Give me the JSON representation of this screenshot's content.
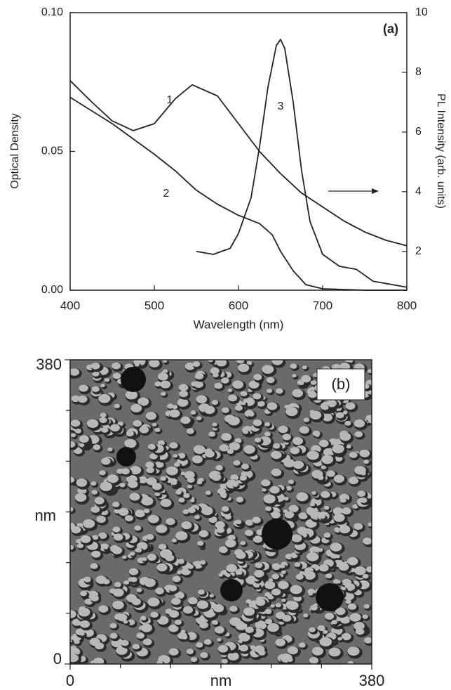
{
  "chart_data": [
    {
      "type": "line",
      "label": "(a)",
      "xlabel": "Wavelength (nm)",
      "ylabel": "Optical Density",
      "y2label": "PL Intensity (arb. units)",
      "xlim": [
        400,
        800
      ],
      "xticks": [
        400,
        500,
        600,
        700,
        800
      ],
      "ylim": [
        0,
        0.1
      ],
      "yticks": [
        {
          "value": 0,
          "label": "0.00"
        },
        {
          "value": 0.05,
          "label": "0.05"
        },
        {
          "value": 0.1,
          "label": "0.10"
        }
      ],
      "y2lim": [
        0.7,
        10
      ],
      "y2ticks": [
        2,
        4,
        6,
        8,
        10
      ],
      "series": [
        {
          "name": "1",
          "color": "#222222",
          "x": [
            400,
            425,
            450,
            475,
            500,
            525,
            545,
            575,
            600,
            625,
            650,
            675,
            700,
            725,
            750,
            775,
            800
          ],
          "values": [
            0.0755,
            0.068,
            0.061,
            0.0575,
            0.06,
            0.069,
            0.074,
            0.07,
            0.06,
            0.05,
            0.042,
            0.035,
            0.03,
            0.025,
            0.021,
            0.018,
            0.016
          ]
        },
        {
          "name": "2",
          "color": "#222222",
          "x": [
            400,
            450,
            500,
            525,
            550,
            575,
            600,
            625,
            640,
            650,
            665,
            680,
            700,
            750,
            800
          ],
          "values": [
            0.0695,
            0.06,
            0.049,
            0.043,
            0.036,
            0.031,
            0.027,
            0.024,
            0.02,
            0.014,
            0.007,
            0.002,
            0.0005,
            0,
            0
          ]
        },
        {
          "name": "3",
          "color": "#222222",
          "axis": "y2",
          "x": [
            550,
            570,
            590,
            600,
            615,
            625,
            635,
            645,
            650,
            655,
            665,
            675,
            685,
            700,
            720,
            740,
            760,
            780,
            800
          ],
          "values": [
            2.0,
            1.9,
            2.1,
            2.6,
            3.8,
            5.5,
            7.5,
            8.9,
            9.1,
            8.8,
            7.0,
            4.7,
            3.0,
            1.9,
            1.5,
            1.4,
            1.0,
            0.9,
            0.8
          ]
        }
      ]
    },
    {
      "type": "image",
      "label": "(b)",
      "xlabel": "nm",
      "ylabel": "nm",
      "xlim": [
        0,
        380
      ],
      "xticks": [
        0,
        380
      ],
      "ylim": [
        0,
        380
      ],
      "yticks": [
        0,
        380
      ]
    }
  ]
}
